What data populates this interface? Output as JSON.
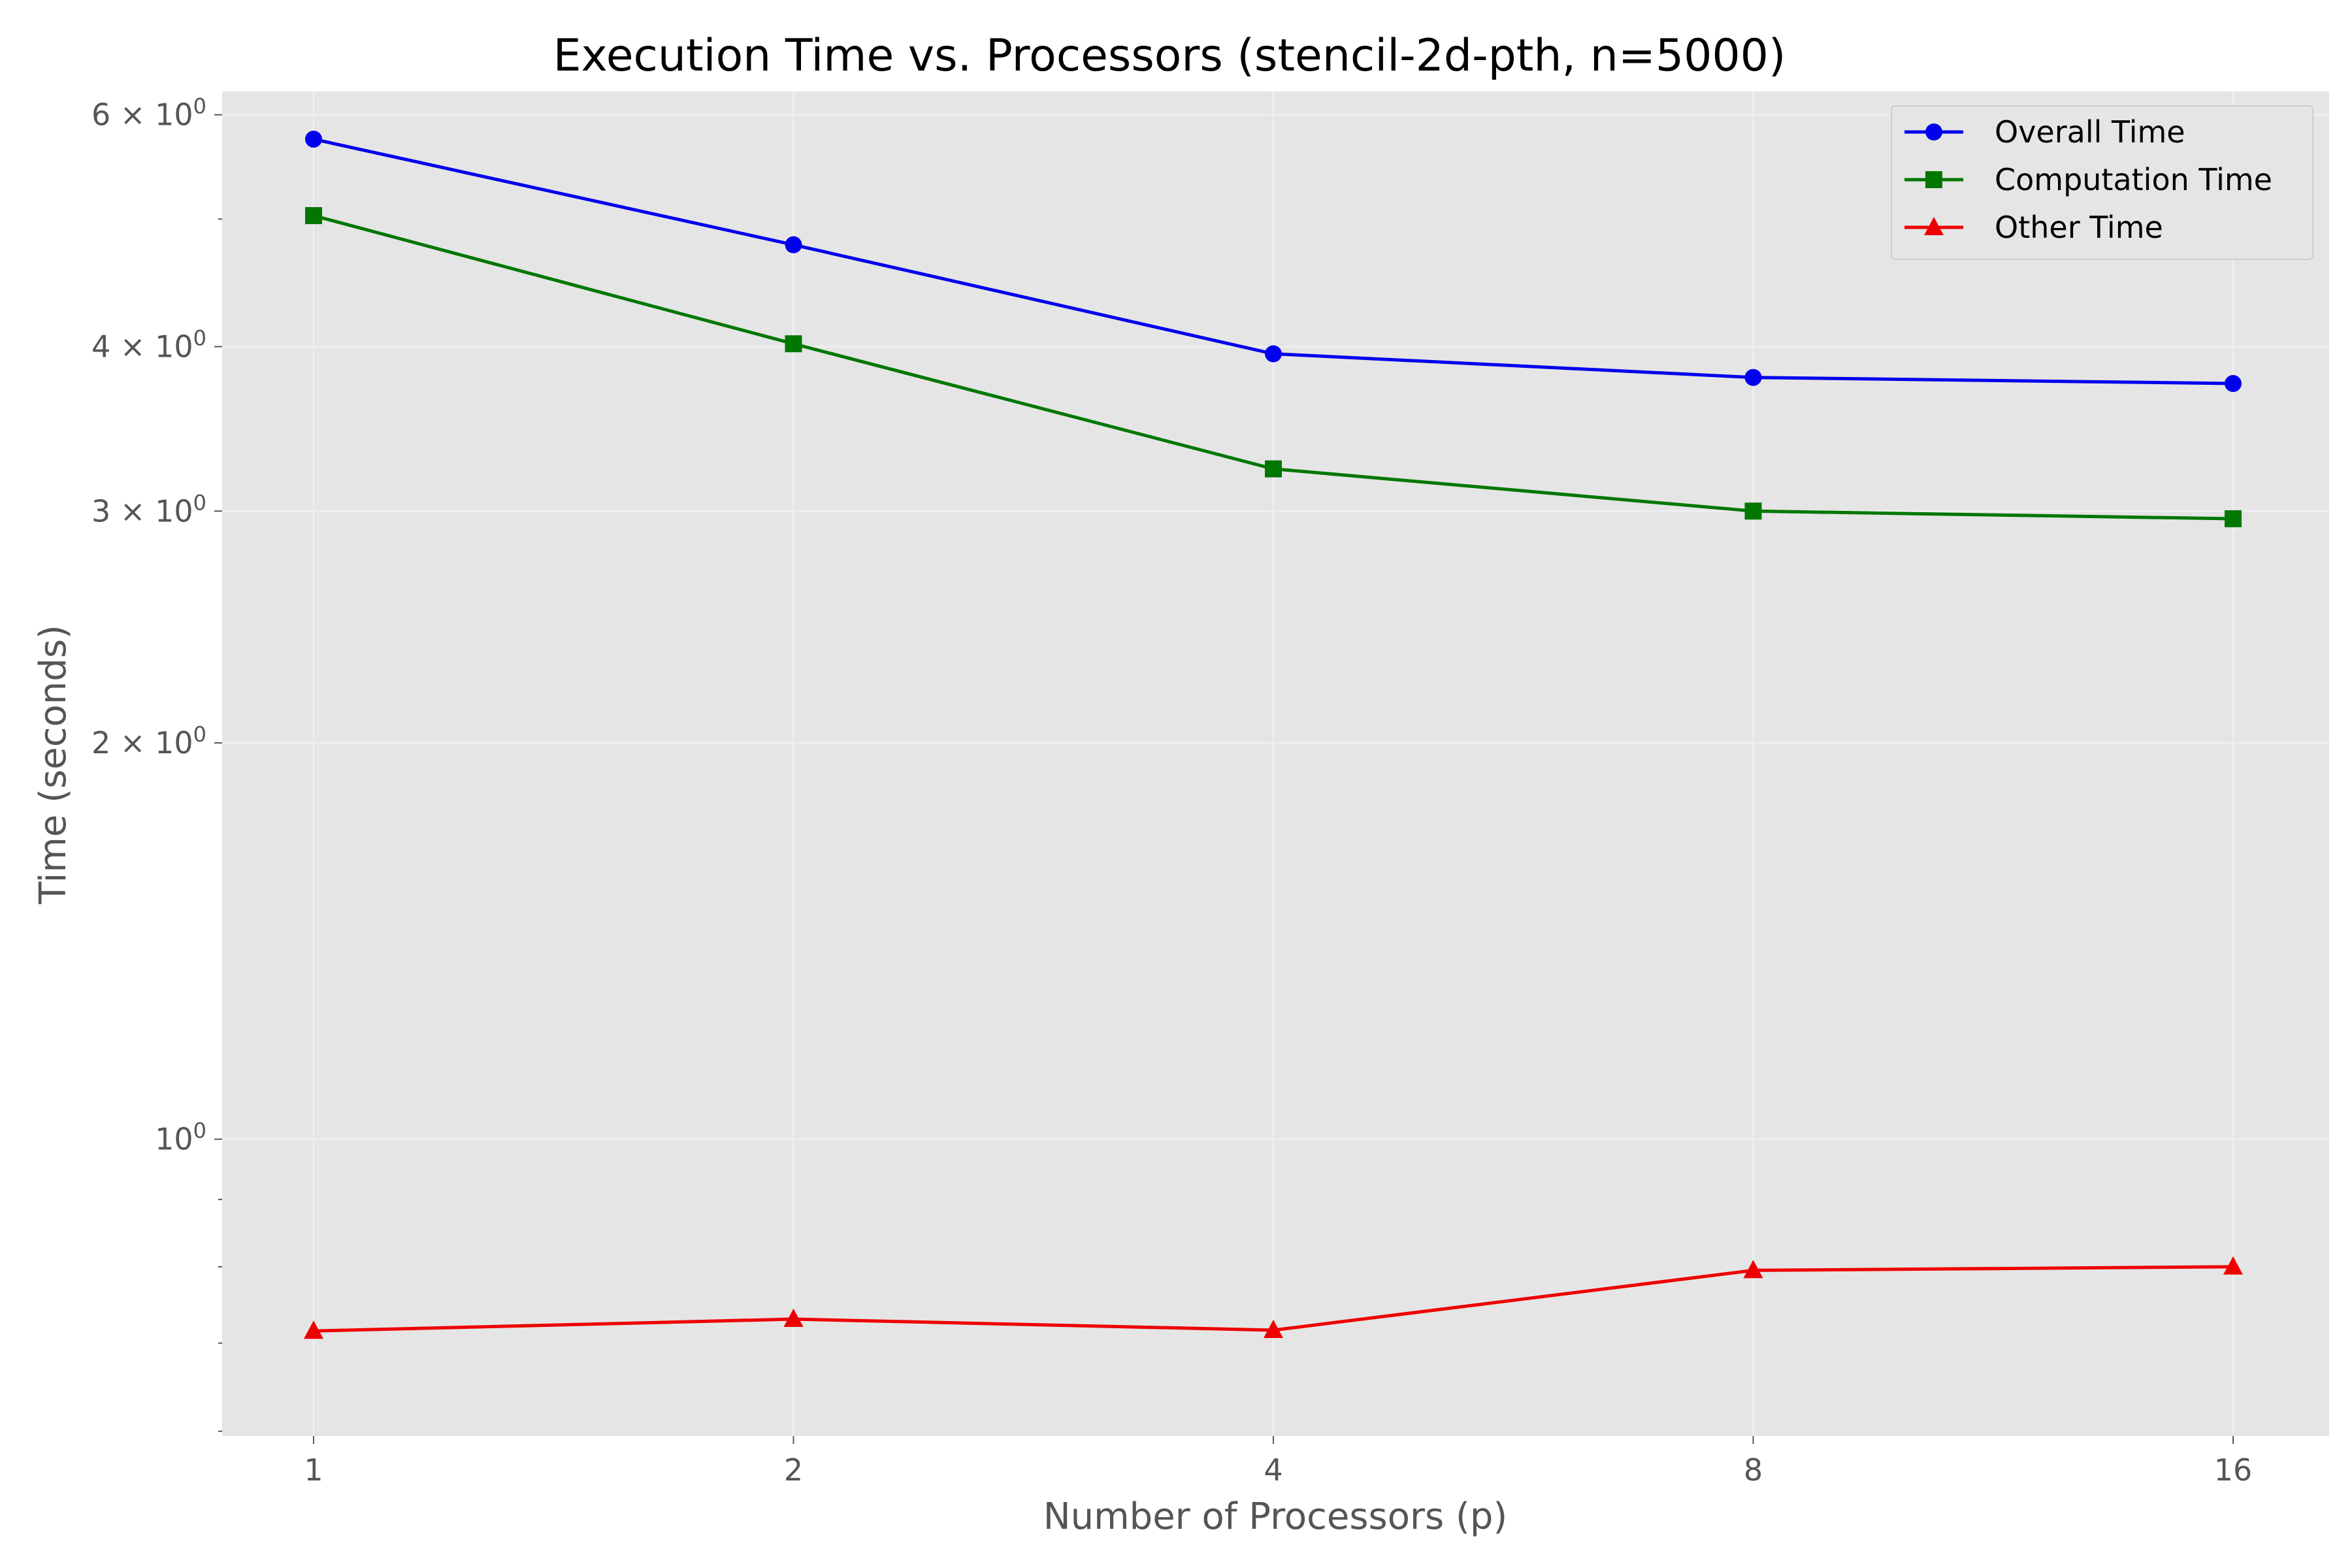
{
  "chart_data": {
    "type": "line",
    "title": "Execution Time vs. Processors (stencil-2d-pth, n=5000)",
    "xlabel": "Number of Processors (p)",
    "ylabel": "Time (seconds)",
    "x": [
      1,
      2,
      4,
      8,
      16
    ],
    "x_scale": "log2",
    "x_tick_labels": [
      "1",
      "2",
      "4",
      "8",
      "16"
    ],
    "y_scale": "log",
    "ylim": [
      0.595,
      6.25
    ],
    "y_major_ticks": [
      {
        "value": 1,
        "base": "10",
        "exp": "0"
      },
      {
        "value": 2,
        "base": "2 × 10",
        "exp": "0"
      },
      {
        "value": 3,
        "base": "3 × 10",
        "exp": "0"
      },
      {
        "value": 4,
        "base": "4 × 10",
        "exp": "0"
      },
      {
        "value": 6,
        "base": "6 × 10",
        "exp": "0"
      }
    ],
    "y_minor_ticks": [
      0.6,
      0.7,
      0.8,
      0.9,
      5
    ],
    "grid": true,
    "legend_position": "top-right",
    "background": "#e5e5e5",
    "series": [
      {
        "name": "Overall Time",
        "color": "#0000ee",
        "marker": "circle",
        "values": [
          5.75,
          4.78,
          3.95,
          3.79,
          3.75
        ]
      },
      {
        "name": "Computation Time",
        "color": "#007700",
        "marker": "square",
        "values": [
          5.03,
          4.02,
          3.23,
          3.0,
          2.96
        ]
      },
      {
        "name": "Other Time",
        "color": "#ee0000",
        "marker": "triangle",
        "values": [
          0.715,
          0.73,
          0.716,
          0.795,
          0.8
        ]
      }
    ]
  }
}
